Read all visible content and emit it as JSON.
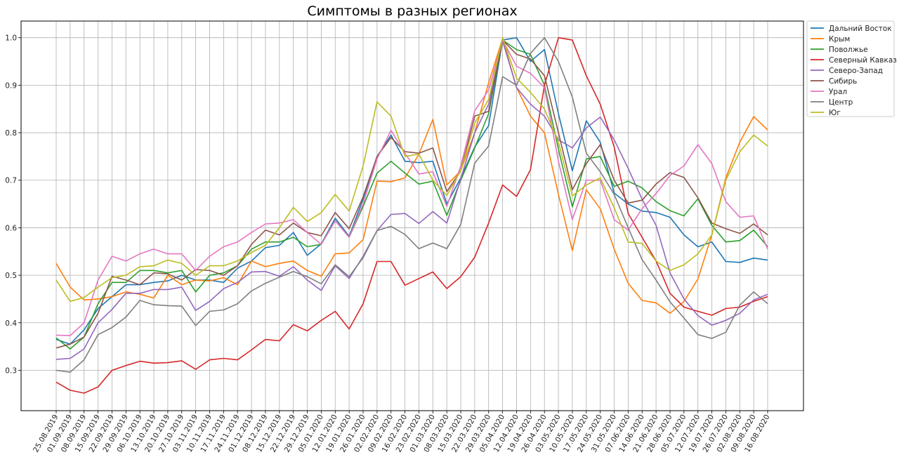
{
  "chart_data": {
    "type": "line",
    "title": "Симптомы в разных регионах",
    "xlabel": "",
    "ylabel": "",
    "ylim": [
      0.215,
      1.035
    ],
    "grid": true,
    "legend_position": "top-right",
    "yticks": [
      "0.3",
      "0.4",
      "0.5",
      "0.6",
      "0.7",
      "0.8",
      "0.9",
      "1.0"
    ],
    "x": [
      "25.08.2019",
      "01.09.2019",
      "08.09.2019",
      "15.09.2019",
      "22.09.2019",
      "29.09.2019",
      "06.10.2019",
      "13.10.2019",
      "20.10.2019",
      "27.10.2019",
      "03.11.2019",
      "10.11.2019",
      "17.11.2019",
      "24.11.2019",
      "01.12.2019",
      "08.12.2019",
      "15.12.2019",
      "22.12.2019",
      "29.12.2019",
      "05.01.2020",
      "12.01.2020",
      "19.01.2020",
      "26.01.2020",
      "02.02.2020",
      "09.02.2020",
      "16.02.2020",
      "23.02.2020",
      "01.03.2020",
      "08.03.2020",
      "15.03.2020",
      "22.03.2020",
      "29.03.2020",
      "05.04.2020",
      "12.04.2020",
      "19.04.2020",
      "26.04.2020",
      "03.05.2020",
      "10.05.2020",
      "17.05.2020",
      "24.05.2020",
      "31.05.2020",
      "07.06.2020",
      "14.06.2020",
      "21.06.2020",
      "28.06.2020",
      "05.07.2020",
      "12.07.2020",
      "19.07.2020",
      "26.07.2020",
      "02.08.2020",
      "09.08.2020",
      "16.08.2020"
    ],
    "series": [
      {
        "name": "Дальний Восток",
        "color": "#1f77b4",
        "values": [
          0.365,
          0.355,
          0.385,
          0.43,
          0.455,
          0.48,
          0.48,
          0.485,
          0.488,
          0.5,
          0.49,
          0.49,
          0.485,
          0.515,
          0.53,
          0.558,
          0.563,
          0.59,
          0.542,
          0.566,
          0.62,
          0.582,
          0.66,
          0.75,
          0.795,
          0.74,
          0.737,
          0.74,
          0.65,
          0.705,
          0.77,
          0.815,
          0.995,
          1.0,
          0.95,
          0.975,
          0.84,
          0.72,
          0.825,
          0.78,
          0.673,
          0.65,
          0.635,
          0.632,
          0.622,
          0.585,
          0.56,
          0.57,
          0.529,
          0.527,
          0.536,
          0.532
        ]
      },
      {
        "name": "Крым",
        "color": "#ff7f0e",
        "values": [
          0.525,
          0.475,
          0.448,
          0.45,
          0.455,
          0.465,
          0.46,
          0.452,
          0.5,
          0.48,
          0.49,
          0.488,
          0.495,
          0.48,
          0.53,
          0.518,
          0.525,
          0.53,
          0.51,
          0.498,
          0.545,
          0.547,
          0.575,
          0.698,
          0.697,
          0.705,
          0.755,
          0.828,
          0.69,
          0.72,
          0.8,
          0.905,
          0.998,
          0.895,
          0.835,
          0.8,
          0.67,
          0.552,
          0.68,
          0.64,
          0.555,
          0.483,
          0.447,
          0.442,
          0.42,
          0.445,
          0.492,
          0.585,
          0.705,
          0.78,
          0.834,
          0.806
        ]
      },
      {
        "name": "Поволжье",
        "color": "#2ca02c",
        "values": [
          0.368,
          0.345,
          0.37,
          0.44,
          0.485,
          0.485,
          0.51,
          0.51,
          0.505,
          0.51,
          0.465,
          0.5,
          0.505,
          0.52,
          0.555,
          0.57,
          0.57,
          0.58,
          0.56,
          0.565,
          0.615,
          0.58,
          0.645,
          0.715,
          0.74,
          0.715,
          0.692,
          0.698,
          0.626,
          0.7,
          0.768,
          0.84,
          0.995,
          0.975,
          0.965,
          0.9,
          0.765,
          0.644,
          0.745,
          0.75,
          0.687,
          0.698,
          0.684,
          0.655,
          0.636,
          0.625,
          0.661,
          0.605,
          0.57,
          0.573,
          0.595,
          0.56
        ]
      },
      {
        "name": "Северный Кавказ",
        "color": "#d62728",
        "values": [
          0.275,
          0.258,
          0.252,
          0.265,
          0.3,
          0.31,
          0.319,
          0.315,
          0.316,
          0.32,
          0.302,
          0.322,
          0.325,
          0.322,
          0.343,
          0.365,
          0.362,
          0.396,
          0.383,
          0.405,
          0.424,
          0.387,
          0.44,
          0.529,
          0.529,
          0.479,
          0.493,
          0.507,
          0.472,
          0.497,
          0.538,
          0.61,
          0.69,
          0.666,
          0.722,
          0.9,
          1.0,
          0.995,
          0.92,
          0.86,
          0.77,
          0.63,
          0.58,
          0.53,
          0.462,
          0.433,
          0.424,
          0.416,
          0.43,
          0.433,
          0.445,
          0.455
        ]
      },
      {
        "name": "Северо-Запад",
        "color": "#9467bd",
        "values": [
          0.323,
          0.325,
          0.345,
          0.4,
          0.428,
          0.462,
          0.462,
          0.47,
          0.47,
          0.475,
          0.426,
          0.445,
          0.472,
          0.485,
          0.507,
          0.508,
          0.498,
          0.518,
          0.49,
          0.468,
          0.52,
          0.493,
          0.54,
          0.594,
          0.628,
          0.63,
          0.609,
          0.634,
          0.61,
          0.703,
          0.8,
          0.86,
          0.993,
          0.895,
          0.86,
          0.835,
          0.785,
          0.768,
          0.81,
          0.833,
          0.785,
          0.725,
          0.66,
          0.605,
          0.505,
          0.45,
          0.415,
          0.395,
          0.405,
          0.42,
          0.448,
          0.46
        ]
      },
      {
        "name": "Сибирь",
        "color": "#8c564b",
        "values": [
          0.347,
          0.355,
          0.37,
          0.42,
          0.498,
          0.49,
          0.48,
          0.505,
          0.503,
          0.49,
          0.512,
          0.51,
          0.5,
          0.52,
          0.565,
          0.595,
          0.585,
          0.61,
          0.59,
          0.583,
          0.632,
          0.598,
          0.665,
          0.75,
          0.79,
          0.76,
          0.757,
          0.768,
          0.676,
          0.72,
          0.835,
          0.845,
          0.995,
          0.965,
          0.955,
          0.92,
          0.8,
          0.68,
          0.735,
          0.775,
          0.7,
          0.652,
          0.658,
          0.692,
          0.716,
          0.706,
          0.663,
          0.61,
          0.598,
          0.588,
          0.608,
          0.585
        ]
      },
      {
        "name": "Урал",
        "color": "#e377c2",
        "values": [
          0.374,
          0.373,
          0.4,
          0.49,
          0.54,
          0.53,
          0.545,
          0.555,
          0.545,
          0.545,
          0.51,
          0.54,
          0.56,
          0.57,
          0.59,
          0.608,
          0.61,
          0.617,
          0.59,
          0.565,
          0.615,
          0.58,
          0.65,
          0.745,
          0.805,
          0.757,
          0.713,
          0.718,
          0.645,
          0.73,
          0.846,
          0.89,
          0.995,
          0.94,
          0.925,
          0.895,
          0.74,
          0.617,
          0.7,
          0.7,
          0.617,
          0.595,
          0.64,
          0.672,
          0.71,
          0.73,
          0.775,
          0.735,
          0.655,
          0.622,
          0.625,
          0.555
        ]
      },
      {
        "name": "Центр",
        "color": "#7f7f7f",
        "values": [
          0.3,
          0.296,
          0.322,
          0.375,
          0.39,
          0.412,
          0.447,
          0.438,
          0.436,
          0.435,
          0.394,
          0.424,
          0.427,
          0.44,
          0.467,
          0.483,
          0.496,
          0.508,
          0.497,
          0.482,
          0.522,
          0.497,
          0.537,
          0.594,
          0.603,
          0.586,
          0.556,
          0.568,
          0.556,
          0.607,
          0.736,
          0.772,
          0.918,
          0.9,
          0.967,
          1.0,
          0.95,
          0.875,
          0.757,
          0.718,
          0.67,
          0.6,
          0.533,
          0.49,
          0.444,
          0.41,
          0.375,
          0.367,
          0.38,
          0.437,
          0.465,
          0.44
        ]
      },
      {
        "name": "Юг",
        "color": "#bcbd22",
        "values": [
          0.49,
          0.445,
          0.453,
          0.475,
          0.495,
          0.5,
          0.518,
          0.52,
          0.532,
          0.525,
          0.5,
          0.52,
          0.52,
          0.53,
          0.548,
          0.563,
          0.6,
          0.643,
          0.613,
          0.632,
          0.67,
          0.635,
          0.73,
          0.865,
          0.835,
          0.75,
          0.755,
          0.7,
          0.668,
          0.72,
          0.82,
          0.87,
          1.0,
          0.915,
          0.885,
          0.85,
          0.78,
          0.667,
          0.69,
          0.705,
          0.642,
          0.57,
          0.567,
          0.53,
          0.51,
          0.522,
          0.545,
          0.585,
          0.7,
          0.76,
          0.795,
          0.772
        ]
      }
    ]
  }
}
